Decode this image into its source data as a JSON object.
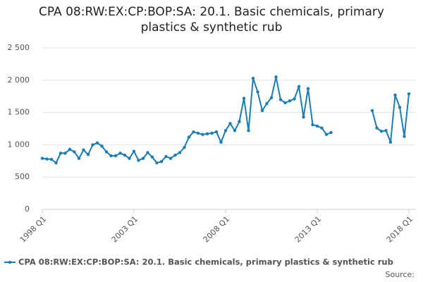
{
  "chart_data": {
    "type": "line",
    "title": "CPA 08:RW:EX:CP:BOP:SA: 20.1. Basic chemicals, primary plastics & synthetic rub",
    "categories": [
      "1998 Q1",
      null,
      null,
      null,
      null,
      null,
      null,
      null,
      null,
      null,
      null,
      null,
      null,
      null,
      null,
      null,
      null,
      null,
      null,
      null,
      "2003 Q1",
      null,
      null,
      null,
      null,
      null,
      null,
      null,
      null,
      null,
      null,
      null,
      null,
      null,
      null,
      null,
      null,
      null,
      null,
      null,
      "2008 Q1",
      null,
      null,
      null,
      null,
      null,
      null,
      null,
      null,
      null,
      null,
      null,
      null,
      null,
      null,
      null,
      null,
      null,
      null,
      null,
      "2013 Q1",
      null,
      null,
      null,
      null,
      null,
      null,
      null,
      null,
      null,
      null,
      null,
      null,
      null,
      null,
      null,
      null,
      null,
      null,
      null,
      "2018 Q1"
    ],
    "series": [
      {
        "name": "CPA 08:RW:EX:CP:BOP:SA: 20.1. Basic chemicals, primary plastics & synthetic rub",
        "color": "#1a7db6",
        "values": [
          790,
          780,
          775,
          720,
          870,
          870,
          930,
          890,
          790,
          920,
          850,
          1000,
          1030,
          980,
          890,
          830,
          830,
          870,
          840,
          790,
          900,
          760,
          790,
          880,
          810,
          720,
          740,
          820,
          790,
          840,
          880,
          960,
          1120,
          1200,
          1180,
          1160,
          1170,
          1180,
          1200,
          1040,
          1220,
          1330,
          1220,
          1360,
          1720,
          1220,
          2030,
          1820,
          1530,
          1640,
          1730,
          2050,
          1700,
          1650,
          1680,
          1710,
          1900,
          1430,
          1870,
          1310,
          1290,
          1260,
          1160,
          1190,
          null,
          null,
          null,
          null,
          null,
          null,
          null,
          null,
          1530,
          1260,
          1210,
          1220,
          1040,
          1770,
          1580,
          1130,
          1790
        ]
      }
    ],
    "ylim": [
      0,
      2500
    ],
    "yticks": [
      0,
      500,
      {
        "value": 1000,
        "label": "1 000"
      },
      {
        "value": 1500,
        "label": "1 500"
      },
      {
        "value": 2000,
        "label": "2 000"
      },
      {
        "value": 2500,
        "label": "2 500"
      }
    ],
    "grid": true,
    "source": "Source:"
  }
}
